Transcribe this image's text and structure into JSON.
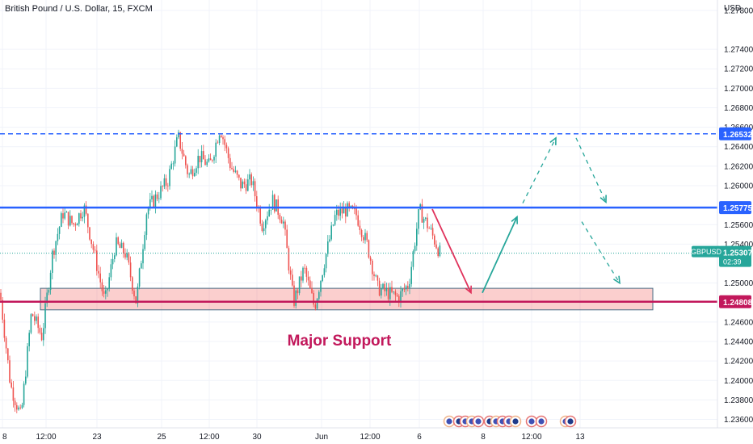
{
  "header": {
    "title": "British Pound / U.S. Dollar, 15, FXCM"
  },
  "price_axis": {
    "unit": "USD",
    "ticks": [
      "1.27800",
      "1.27400",
      "1.27200",
      "1.27000",
      "1.26800",
      "1.26600",
      "1.26400",
      "1.26200",
      "1.26000",
      "1.25600",
      "1.25400",
      "1.25000",
      "1.24600",
      "1.24400",
      "1.24200",
      "1.24000",
      "1.23800",
      "1.23600"
    ]
  },
  "time_axis": {
    "ticks": [
      "8",
      "12:00",
      "23",
      "25",
      "12:00",
      "30",
      "Jun",
      "12:00",
      "6",
      "8",
      "12:00",
      "13"
    ]
  },
  "tags": {
    "resistance": {
      "value": "1.26532",
      "color": "#2962ff"
    },
    "pivot": {
      "value": "1.25775",
      "color": "#2962ff"
    },
    "support": {
      "value": "1.24808",
      "color": "#c2185b"
    },
    "symbol": {
      "label": "GBPUSD",
      "value": "1.25307",
      "countdown": "02:39",
      "color": "#26a69a"
    }
  },
  "annotation": {
    "text": "Major Support",
    "color": "#c2185b"
  },
  "chart_data": {
    "type": "candlestick",
    "title": "British Pound / U.S. Dollar, 15, FXCM",
    "ylabel": "USD",
    "ylim": [
      1.2353,
      1.2784
    ],
    "x_ticks": [
      "8",
      "12:00",
      "23",
      "25",
      "12:00",
      "30",
      "Jun",
      "12:00",
      "6",
      "8",
      "12:00",
      "13"
    ],
    "price_path": [
      1.249,
      1.2395,
      1.2362,
      1.247,
      1.2445,
      1.253,
      1.2572,
      1.256,
      1.2578,
      1.253,
      1.248,
      1.254,
      1.253,
      1.248,
      1.2575,
      1.259,
      1.2605,
      1.265,
      1.261,
      1.263,
      1.262,
      1.266,
      1.262,
      1.26,
      1.2605,
      1.256,
      1.2585,
      1.2565,
      1.248,
      1.2515,
      1.2475,
      1.2525,
      1.257,
      1.2575,
      1.257,
      1.254,
      1.2495,
      1.249,
      1.2485,
      1.25,
      1.2575,
      1.2555,
      1.253
    ],
    "last_price": 1.25307,
    "levels": [
      {
        "name": "resistance",
        "value": 1.26532,
        "style": "dashed",
        "color": "#2962ff"
      },
      {
        "name": "pivot",
        "value": 1.25775,
        "style": "solid",
        "color": "#2962ff"
      },
      {
        "name": "support",
        "value": 1.24808,
        "style": "solid",
        "color": "#c2185b"
      }
    ],
    "support_zone": [
      1.2475,
      1.2488
    ],
    "projections": [
      {
        "style": "solid",
        "color": "#e0325b",
        "from": 1.2576,
        "to": 1.249
      },
      {
        "style": "solid",
        "color": "#26a69a",
        "from": 1.249,
        "to": 1.2568
      },
      {
        "style": "dashed",
        "color": "#26a69a",
        "from": 1.2582,
        "to": 1.2649
      },
      {
        "style": "dashed",
        "color": "#26a69a",
        "from": 1.2649,
        "to": 1.2583
      },
      {
        "style": "dashed",
        "color": "#26a69a",
        "from": 1.2563,
        "to": 1.25
      }
    ]
  }
}
